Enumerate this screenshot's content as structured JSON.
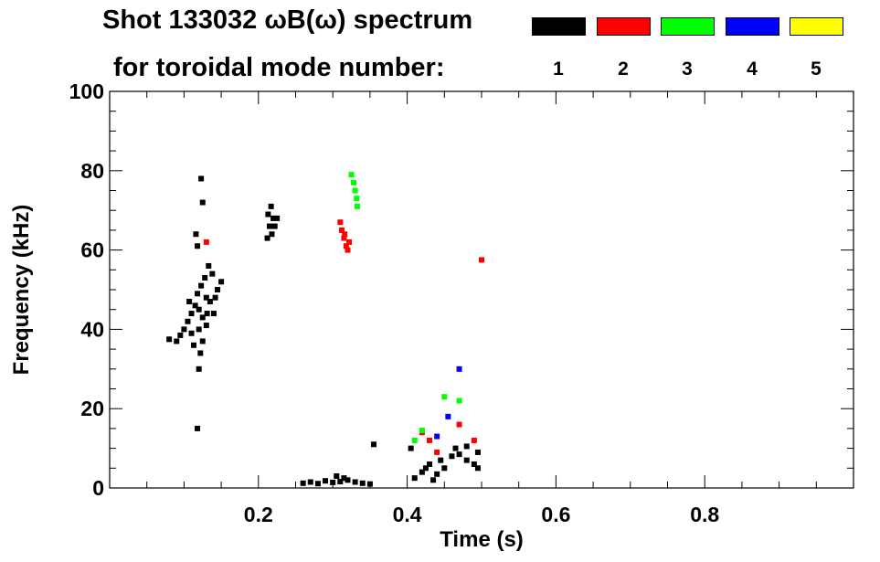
{
  "title_line1": "Shot 133032 ωB(ω) spectrum",
  "title_line2": "for toroidal mode number:",
  "legend": [
    {
      "label": "1",
      "color": "#000000"
    },
    {
      "label": "2",
      "color": "#ff0000"
    },
    {
      "label": "3",
      "color": "#00ff00"
    },
    {
      "label": "4",
      "color": "#0000ff"
    },
    {
      "label": "5",
      "color": "#ffff00"
    }
  ],
  "chart_data": {
    "type": "scatter",
    "title": "Shot 133032 ωB(ω) spectrum",
    "xlabel": "Time (s)",
    "ylabel": "Frequency (kHz)",
    "xlim": [
      0.0,
      1.0
    ],
    "ylim": [
      0,
      100
    ],
    "xticks": [
      0.2,
      0.4,
      0.6,
      0.8
    ],
    "xtick_labels": [
      "0.2",
      "0.4",
      "0.6",
      "0.8"
    ],
    "yticks": [
      0,
      20,
      40,
      60,
      80,
      100
    ],
    "ytick_labels": [
      "0",
      "20",
      "40",
      "60",
      "80",
      "100"
    ],
    "grid": false,
    "series": [
      {
        "name": "1",
        "color": "#000000",
        "points": [
          [
            0.08,
            37.5
          ],
          [
            0.09,
            37
          ],
          [
            0.095,
            38.5
          ],
          [
            0.1,
            40
          ],
          [
            0.105,
            42
          ],
          [
            0.11,
            44
          ],
          [
            0.115,
            46
          ],
          [
            0.12,
            45
          ],
          [
            0.125,
            43
          ],
          [
            0.13,
            48
          ],
          [
            0.135,
            47
          ],
          [
            0.14,
            44
          ],
          [
            0.145,
            50
          ],
          [
            0.15,
            52
          ],
          [
            0.11,
            39
          ],
          [
            0.12,
            40
          ],
          [
            0.125,
            37
          ],
          [
            0.13,
            41
          ],
          [
            0.118,
            49
          ],
          [
            0.128,
            53
          ],
          [
            0.133,
            56
          ],
          [
            0.138,
            54
          ],
          [
            0.123,
            51
          ],
          [
            0.113,
            36
          ],
          [
            0.107,
            47
          ],
          [
            0.142,
            48
          ],
          [
            0.131,
            44
          ],
          [
            0.122,
            34
          ],
          [
            0.12,
            30
          ],
          [
            0.118,
            61
          ],
          [
            0.116,
            64
          ],
          [
            0.125,
            72
          ],
          [
            0.123,
            78
          ],
          [
            0.213,
            69
          ],
          [
            0.215,
            66
          ],
          [
            0.218,
            64
          ],
          [
            0.22,
            68
          ],
          [
            0.222,
            66
          ],
          [
            0.225,
            68
          ],
          [
            0.212,
            63
          ],
          [
            0.217,
            71
          ],
          [
            0.26,
            1.2
          ],
          [
            0.27,
            1.5
          ],
          [
            0.28,
            1.1
          ],
          [
            0.29,
            1.8
          ],
          [
            0.3,
            1.4
          ],
          [
            0.31,
            1.6
          ],
          [
            0.32,
            2.0
          ],
          [
            0.33,
            1.5
          ],
          [
            0.34,
            1.2
          ],
          [
            0.35,
            1.0
          ],
          [
            0.305,
            3
          ],
          [
            0.315,
            2.5
          ],
          [
            0.41,
            2.5
          ],
          [
            0.42,
            4
          ],
          [
            0.425,
            5
          ],
          [
            0.43,
            6
          ],
          [
            0.44,
            3.5
          ],
          [
            0.45,
            5
          ],
          [
            0.46,
            8
          ],
          [
            0.47,
            8.5
          ],
          [
            0.48,
            7
          ],
          [
            0.49,
            6
          ],
          [
            0.495,
            5
          ],
          [
            0.445,
            7
          ],
          [
            0.465,
            10
          ],
          [
            0.48,
            10.5
          ],
          [
            0.495,
            9
          ],
          [
            0.435,
            2
          ],
          [
            0.355,
            11
          ],
          [
            0.405,
            10
          ],
          [
            0.118,
            15
          ]
        ]
      },
      {
        "name": "2",
        "color": "#ff0000",
        "points": [
          [
            0.31,
            67
          ],
          [
            0.312,
            65
          ],
          [
            0.315,
            63
          ],
          [
            0.318,
            61
          ],
          [
            0.32,
            60
          ],
          [
            0.322,
            62
          ],
          [
            0.316,
            64
          ],
          [
            0.13,
            62
          ],
          [
            0.43,
            12
          ],
          [
            0.44,
            9
          ],
          [
            0.47,
            16
          ],
          [
            0.49,
            12
          ],
          [
            0.5,
            57.5
          ],
          [
            0.42,
            14
          ]
        ]
      },
      {
        "name": "3",
        "color": "#00ff00",
        "points": [
          [
            0.325,
            79
          ],
          [
            0.328,
            77
          ],
          [
            0.33,
            75
          ],
          [
            0.332,
            73
          ],
          [
            0.333,
            71
          ],
          [
            0.42,
            14.5
          ],
          [
            0.45,
            23
          ],
          [
            0.47,
            22
          ],
          [
            0.41,
            12
          ]
        ]
      },
      {
        "name": "4",
        "color": "#0000ff",
        "points": [
          [
            0.47,
            30
          ],
          [
            0.44,
            13
          ],
          [
            0.455,
            18
          ]
        ]
      },
      {
        "name": "5",
        "color": "#ffff00",
        "points": []
      }
    ]
  }
}
